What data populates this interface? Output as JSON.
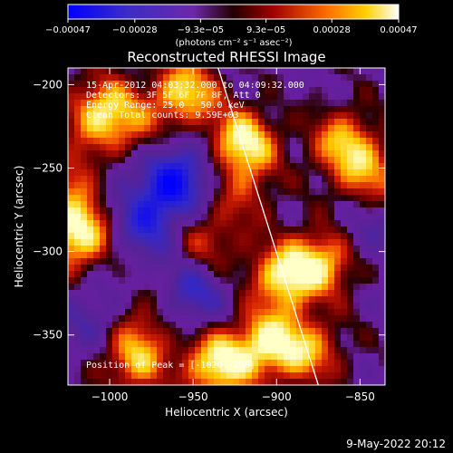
{
  "chart_data": {
    "type": "heatmap",
    "title": "Reconstructed RHESSI Image",
    "xlabel": "Heliocentric X (arcsec)",
    "ylabel": "Heliocentric Y (arcsec)",
    "xlim": [
      -1025,
      -835
    ],
    "ylim": [
      -380,
      -190
    ],
    "xticks": [
      -1000,
      -950,
      -900,
      -850
    ],
    "yticks": [
      -200,
      -250,
      -300,
      -350
    ],
    "xtick_labels": [
      "−1000",
      "−950",
      "−900",
      "−850"
    ],
    "ytick_labels": [
      "−200",
      "−250",
      "−300",
      "−350"
    ],
    "colorbar": {
      "min": -0.00047,
      "max": 0.00047,
      "tick_values": [
        -0.00047,
        -0.00028,
        -9.3e-05,
        9.3e-05,
        0.00028,
        0.00047
      ],
      "tick_labels": [
        "−0.00047",
        "−0.00028",
        "−9.3e−05",
        "9.3e−05",
        "0.00028",
        "0.00047"
      ],
      "unit_label": "(photons cm⁻² s⁻¹ asec⁻²)"
    },
    "annotations": {
      "line1": "15-Apr-2012 04:03:32.000 to 04:09:32.000",
      "line2": "Detectors: 3F 5F 6F 7F 8F, Att 0",
      "line3": "Energy Range: 25.0 - 50.0 keV",
      "line4": "Clean     Total counts: 9.59E+03",
      "peak": "Position of Peak = [-1020,-290]"
    },
    "peak_position": [
      -1020,
      -290
    ],
    "limb_line": [
      [
        -935,
        -190
      ],
      [
        -875,
        -380
      ]
    ],
    "sources": [
      {
        "x": -1020,
        "y": -290,
        "intensity": 1.0
      },
      {
        "x": -1015,
        "y": -255,
        "intensity": 0.8
      },
      {
        "x": -1005,
        "y": -215,
        "intensity": 0.75
      },
      {
        "x": -955,
        "y": -205,
        "intensity": 0.85
      },
      {
        "x": -920,
        "y": -235,
        "intensity": 0.95
      },
      {
        "x": -895,
        "y": -315,
        "intensity": 0.9
      },
      {
        "x": -870,
        "y": -305,
        "intensity": 0.75
      },
      {
        "x": -860,
        "y": -235,
        "intensity": 0.7
      },
      {
        "x": -845,
        "y": -255,
        "intensity": 0.55
      },
      {
        "x": -905,
        "y": -355,
        "intensity": 0.85
      },
      {
        "x": -935,
        "y": -368,
        "intensity": 0.95
      },
      {
        "x": -985,
        "y": -365,
        "intensity": 0.7
      },
      {
        "x": -880,
        "y": -360,
        "intensity": 0.6
      },
      {
        "x": -965,
        "y": -285,
        "intensity": 0.35
      },
      {
        "x": -980,
        "y": -340,
        "intensity": 0.3
      },
      {
        "x": -990,
        "y": -228,
        "intensity": 0.45
      },
      {
        "x": -940,
        "y": -295,
        "intensity": 0.4
      },
      {
        "x": -920,
        "y": -265,
        "intensity": 0.35
      }
    ],
    "negative_sources": [
      {
        "x": -975,
        "y": -285,
        "intensity": -0.8
      },
      {
        "x": -965,
        "y": -265,
        "intensity": -0.6
      },
      {
        "x": -950,
        "y": -325,
        "intensity": -0.55
      },
      {
        "x": -955,
        "y": -250,
        "intensity": -0.5
      },
      {
        "x": -1003,
        "y": -252,
        "intensity": -0.55
      },
      {
        "x": -848,
        "y": -290,
        "intensity": -0.35
      },
      {
        "x": -1010,
        "y": -340,
        "intensity": -0.35
      }
    ]
  },
  "footer": {
    "date": "9-May-2022 20:12"
  }
}
